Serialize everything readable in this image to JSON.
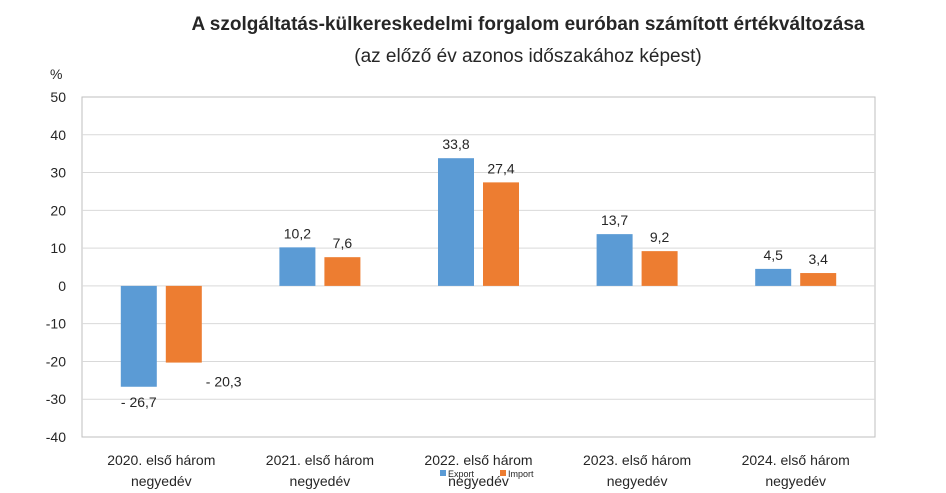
{
  "chart_data": {
    "type": "bar",
    "title": "A szolgáltatás-külkereskedelmi forgalom euróban számított értékváltozása",
    "subtitle": "(az előző év azonos időszakához képest)",
    "ylabel": "%",
    "ylim": [
      -40,
      50
    ],
    "yticks": [
      50,
      40,
      30,
      20,
      10,
      0,
      -10,
      -20,
      -30,
      -40
    ],
    "grid": true,
    "legend_position": "bottom",
    "categories": [
      [
        "2020. első három",
        "negyedév"
      ],
      [
        "2021. első három",
        "negyedév"
      ],
      [
        "2022. első három",
        "negyedév"
      ],
      [
        "2023. első három",
        "negyedév"
      ],
      [
        "2024. első három",
        "negyedév"
      ]
    ],
    "series": [
      {
        "name": "Export",
        "color": "#5b9bd5",
        "values": [
          -26.7,
          10.2,
          33.8,
          13.7,
          4.5
        ],
        "labels": [
          "- 26,7",
          "10,2",
          "33,8",
          "13,7",
          "4,5"
        ]
      },
      {
        "name": "Import",
        "color": "#ed7d31",
        "values": [
          -20.3,
          7.6,
          27.4,
          9.2,
          3.4
        ],
        "labels": [
          "- 20,3",
          "7,6",
          "27,4",
          "9,2",
          "3,4"
        ]
      }
    ]
  }
}
